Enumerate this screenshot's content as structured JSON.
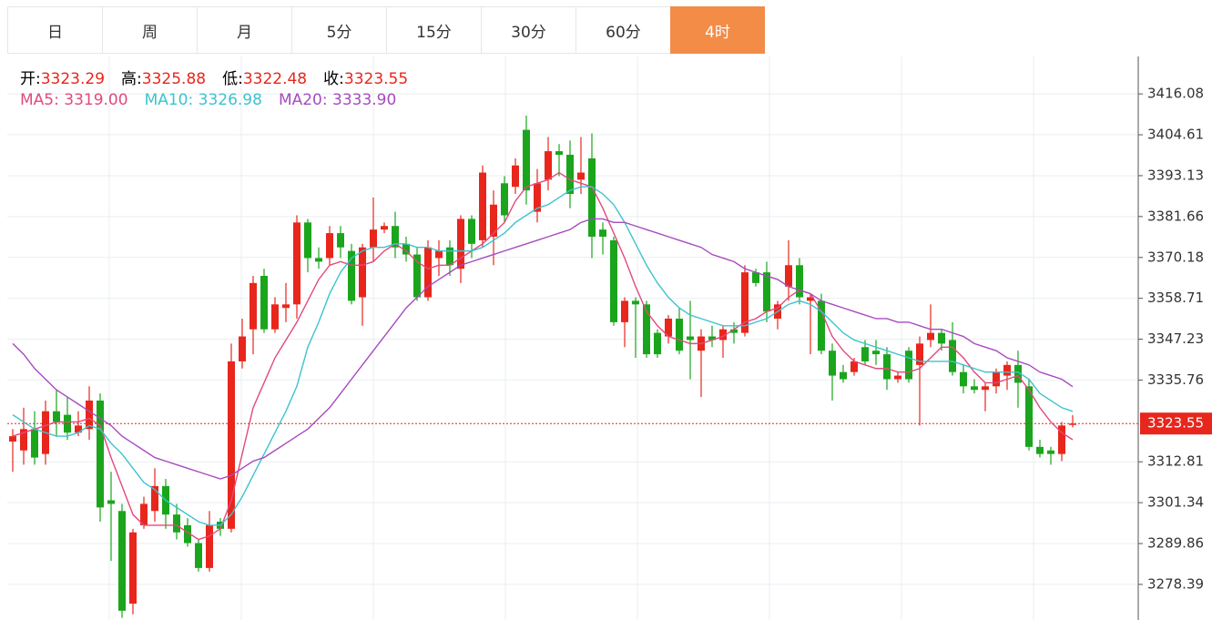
{
  "tabs": [
    "日",
    "周",
    "月",
    "5分",
    "15分",
    "30分",
    "60分",
    "4时"
  ],
  "active_tab": 7,
  "chart_data": {
    "type": "candlestick",
    "ohlc_info": [
      {
        "label": "开:",
        "value": 3323.29
      },
      {
        "label": "高:",
        "value": 3325.88
      },
      {
        "label": "低:",
        "value": 3322.48
      },
      {
        "label": "收:",
        "value": 3323.55
      }
    ],
    "open": [
      3318.5,
      3316,
      3322,
      3315,
      3327,
      3326,
      3321,
      3322,
      3330,
      3302,
      3299,
      3273,
      3295,
      3299,
      3306,
      3298,
      3295,
      3290,
      3283,
      3296,
      3294,
      3341,
      3350,
      3365,
      3350,
      3356,
      3357,
      3380,
      3370,
      3370,
      3377,
      3372,
      3359,
      3373,
      3378,
      3379,
      3374,
      3371,
      3359,
      3370,
      3373,
      3367,
      3381,
      3375,
      3376,
      3391,
      3390,
      3406,
      3383,
      3392,
      3400,
      3399,
      3392,
      3398,
      3378,
      3375,
      3352,
      3358,
      3357,
      3349,
      3348,
      3353,
      3348,
      3344,
      3348,
      3347,
      3350,
      3349,
      3366,
      3366,
      3353,
      3362,
      3368,
      3358,
      3358,
      3344,
      3338,
      3338,
      3345,
      3344,
      3343,
      3336,
      3344,
      3340,
      3347,
      3349,
      3347,
      3338,
      3334,
      3333,
      3334,
      3337,
      3340,
      3334,
      3317,
      3316,
      3315,
      3323.29
    ],
    "close": [
      3320,
      3322,
      3314,
      3327,
      3324,
      3321,
      3323,
      3330,
      3300,
      3301,
      3271,
      3293,
      3301,
      3306,
      3298,
      3293,
      3290,
      3283,
      3295,
      3294,
      3341,
      3348,
      3363,
      3350,
      3357,
      3357,
      3380,
      3370,
      3369,
      3377,
      3373,
      3358,
      3373,
      3378,
      3379,
      3373,
      3371,
      3359,
      3373,
      3372,
      3368,
      3381,
      3374,
      3394,
      3385,
      3382,
      3396,
      3389,
      3391,
      3400,
      3399,
      3388,
      3394,
      3376,
      3376,
      3352,
      3358,
      3357,
      3343,
      3343,
      3353,
      3344,
      3347,
      3348,
      3347,
      3350,
      3349,
      3366,
      3363,
      3355,
      3357,
      3368,
      3359,
      3359,
      3344,
      3337,
      3336,
      3341,
      3341,
      3343,
      3336,
      3337,
      3336,
      3346,
      3349,
      3346,
      3338,
      3334,
      3333,
      3334,
      3338,
      3340,
      3335,
      3317,
      3315,
      3315,
      3323,
      3323.55
    ],
    "high": [
      3322,
      3328,
      3327,
      3330,
      3333,
      3331,
      3327,
      3334,
      3332,
      3310,
      3301,
      3294,
      3303,
      3311,
      3308,
      3301,
      3297,
      3291,
      3299,
      3297,
      3346,
      3353,
      3365,
      3367,
      3359,
      3363,
      3382,
      3381,
      3373,
      3379,
      3379,
      3374,
      3374,
      3387,
      3380,
      3383,
      3376,
      3373,
      3375,
      3375,
      3375,
      3382,
      3382,
      3396,
      3389,
      3393,
      3398,
      3410,
      3395,
      3404,
      3402,
      3403,
      3404,
      3405,
      3380,
      3376,
      3359,
      3359,
      3358,
      3350,
      3354,
      3356,
      3358,
      3350,
      3351,
      3351,
      3352,
      3368,
      3367,
      3369,
      3358,
      3375,
      3370,
      3360,
      3360,
      3346,
      3340,
      3342,
      3347,
      3347,
      3345,
      3338,
      3345,
      3348,
      3357,
      3350,
      3352,
      3340,
      3336,
      3335,
      3339,
      3341,
      3344,
      3336,
      3319,
      3317,
      3324,
      3325.88
    ],
    "low": [
      3310,
      3312,
      3312,
      3312,
      3320,
      3319,
      3320,
      3319,
      3296,
      3285,
      3269,
      3270,
      3294,
      3296,
      3294,
      3291,
      3289,
      3282,
      3282,
      3292,
      3293,
      3339,
      3343,
      3349,
      3349,
      3352,
      3353,
      3366,
      3367,
      3368,
      3370,
      3357,
      3351,
      3369,
      3377,
      3370,
      3369,
      3358,
      3358,
      3365,
      3365,
      3363,
      3370,
      3373,
      3368,
      3380,
      3388,
      3385,
      3380,
      3389,
      3393,
      3384,
      3388,
      3370,
      3371,
      3351,
      3345,
      3342,
      3342,
      3342,
      3346,
      3343,
      3336,
      3331,
      3345,
      3342,
      3346,
      3348,
      3362,
      3352,
      3350,
      3358,
      3357,
      3343,
      3343,
      3330,
      3335,
      3337,
      3340,
      3340,
      3333,
      3335,
      3335,
      3323,
      3345,
      3344,
      3337,
      3332,
      3332,
      3327,
      3332,
      3333,
      3328,
      3316,
      3314,
      3312,
      3313,
      3322.48
    ],
    "up_color": "#e8261c",
    "down_color": "#1aa51c",
    "series": [
      {
        "name": "MA5:",
        "value_label": "3319.00",
        "color": "#e2497c",
        "values": [
          3320,
          3321,
          3322,
          3323,
          3324,
          3324,
          3324,
          3325,
          3323,
          3314,
          3306,
          3298,
          3295,
          3295,
          3295,
          3295,
          3293,
          3291,
          3292,
          3294,
          3302,
          3315,
          3328,
          3335,
          3342,
          3347,
          3352,
          3358,
          3364,
          3368,
          3369,
          3368,
          3368,
          3369,
          3372,
          3374,
          3372,
          3369,
          3367,
          3368,
          3368,
          3370,
          3372,
          3374,
          3377,
          3380,
          3386,
          3390,
          3391,
          3392,
          3394,
          3392,
          3391,
          3390,
          3384,
          3377,
          3370,
          3362,
          3355,
          3351,
          3348,
          3347,
          3346,
          3346,
          3347,
          3348,
          3350,
          3352,
          3353,
          3355,
          3356,
          3359,
          3361,
          3360,
          3355,
          3348,
          3344,
          3341,
          3340,
          3339,
          3339,
          3338,
          3338,
          3339,
          3342,
          3345,
          3345,
          3342,
          3338,
          3335,
          3335,
          3336,
          3337,
          3333,
          3328,
          3324,
          3321,
          3319
        ]
      },
      {
        "name": "MA10:",
        "value_label": "3326.98",
        "color": "#3cc3cf",
        "values": [
          3326,
          3324,
          3322,
          3321,
          3320,
          3320,
          3321,
          3323,
          3322,
          3318,
          3315,
          3311,
          3307,
          3305,
          3302,
          3300,
          3298,
          3296,
          3295,
          3295,
          3298,
          3303,
          3309,
          3315,
          3321,
          3327,
          3334,
          3345,
          3352,
          3360,
          3366,
          3370,
          3372,
          3373,
          3373,
          3374,
          3374,
          3373,
          3373,
          3372,
          3372,
          3372,
          3372,
          3373,
          3375,
          3377,
          3380,
          3382,
          3384,
          3385,
          3387,
          3389,
          3390,
          3390,
          3388,
          3385,
          3380,
          3374,
          3368,
          3363,
          3359,
          3356,
          3354,
          3353,
          3352,
          3351,
          3351,
          3351,
          3352,
          3353,
          3355,
          3357,
          3358,
          3357,
          3355,
          3352,
          3349,
          3347,
          3346,
          3345,
          3344,
          3343,
          3342,
          3341,
          3341,
          3341,
          3341,
          3340,
          3339,
          3338,
          3338,
          3338,
          3338,
          3336,
          3332,
          3330,
          3328,
          3326.98
        ]
      },
      {
        "name": "MA20:",
        "value_label": "3333.90",
        "color": "#a64bbf",
        "values": [
          3346,
          3343,
          3339,
          3336,
          3333,
          3331,
          3329,
          3327,
          3325,
          3323,
          3320,
          3318,
          3316,
          3314,
          3313,
          3312,
          3311,
          3310,
          3309,
          3308,
          3309,
          3311,
          3313,
          3314,
          3316,
          3318,
          3320,
          3322,
          3325,
          3328,
          3332,
          3336,
          3340,
          3344,
          3348,
          3352,
          3356,
          3359,
          3362,
          3364,
          3366,
          3368,
          3369,
          3370,
          3371,
          3372,
          3373,
          3374,
          3375,
          3376,
          3377,
          3378,
          3380,
          3381,
          3381,
          3380,
          3380,
          3379,
          3378,
          3377,
          3376,
          3375,
          3374,
          3373,
          3371,
          3370,
          3369,
          3367,
          3366,
          3365,
          3364,
          3362,
          3361,
          3360,
          3358,
          3357,
          3356,
          3355,
          3354,
          3353,
          3353,
          3352,
          3352,
          3351,
          3350,
          3350,
          3349,
          3348,
          3346,
          3345,
          3344,
          3342,
          3341,
          3340,
          3338,
          3337,
          3336,
          3333.9
        ]
      }
    ],
    "last_price": 3323.55,
    "ylim": [
      3268.4,
      3426.6
    ],
    "yticks": [
      3416.08,
      3404.61,
      3393.13,
      3381.66,
      3370.18,
      3358.71,
      3347.23,
      3335.76,
      3312.81,
      3301.34,
      3289.86,
      3278.39
    ],
    "grid": true
  }
}
